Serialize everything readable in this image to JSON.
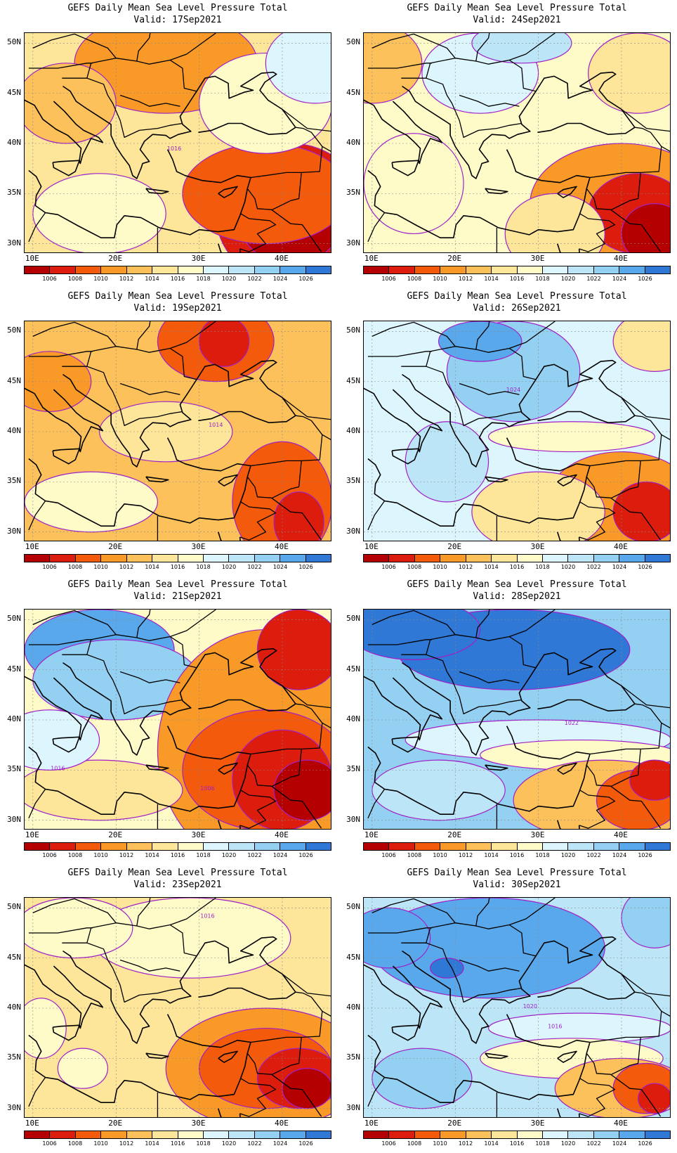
{
  "colorbar": {
    "levels": [
      "1006",
      "1008",
      "1010",
      "1012",
      "1014",
      "1016",
      "1018",
      "1020",
      "1022",
      "1024",
      "1026"
    ],
    "colors": [
      "#b40000",
      "#dc1c0c",
      "#f45a0c",
      "#f99a28",
      "#fdc15c",
      "#fde59a",
      "#fefbc8",
      "#ddf6fe",
      "#bce6f8",
      "#94d0f2",
      "#5aa8ec",
      "#2f78d6"
    ]
  },
  "lat_labels": [
    "50N",
    "45N",
    "40N",
    "35N",
    "30N"
  ],
  "lon_labels": [
    "10E",
    "20E",
    "30E",
    "40E"
  ],
  "panels": [
    {
      "title": "GEFS Daily Mean Sea Level Pressure Total",
      "valid": "Valid: 17Sep2021",
      "base": 5,
      "fields": [
        {
          "lon": 26,
          "lat": 50.5,
          "rx": 7,
          "ry": 3.5,
          "level": 1
        },
        {
          "lon": 26,
          "lat": 48,
          "rx": 11,
          "ry": 5,
          "level": 3
        },
        {
          "lon": 14,
          "lat": 44,
          "rx": 6,
          "ry": 4,
          "level": 4
        },
        {
          "lon": 41,
          "lat": 33,
          "rx": 9,
          "ry": 7,
          "level": 1
        },
        {
          "lon": 41,
          "lat": 32,
          "rx": 6,
          "ry": 4,
          "level": 0
        },
        {
          "lon": 38,
          "lat": 35,
          "rx": 10,
          "ry": 5,
          "level": 2
        },
        {
          "lon": 18,
          "lat": 33,
          "rx": 8,
          "ry": 4,
          "level": 6
        },
        {
          "lon": 38,
          "lat": 44,
          "rx": 8,
          "ry": 5,
          "level": 6
        },
        {
          "lon": 44,
          "lat": 48,
          "rx": 6,
          "ry": 4,
          "level": 7
        }
      ],
      "contour_labels": [
        {
          "text": "1016",
          "lon": 27,
          "lat": 39.3
        }
      ]
    },
    {
      "title": "GEFS Daily Mean Sea Level Pressure Total",
      "valid": "Valid: 24Sep2021",
      "base": 6,
      "fields": [
        {
          "lon": 15,
          "lat": 36,
          "rx": 6,
          "ry": 5,
          "level": 6
        },
        {
          "lon": 23,
          "lat": 47,
          "rx": 7,
          "ry": 4,
          "level": 7
        },
        {
          "lon": 40,
          "lat": 34,
          "rx": 11,
          "ry": 6,
          "level": 3
        },
        {
          "lon": 42,
          "lat": 33,
          "rx": 6,
          "ry": 4,
          "level": 1
        },
        {
          "lon": 44,
          "lat": 31,
          "rx": 4,
          "ry": 3,
          "level": 0
        },
        {
          "lon": 10,
          "lat": 48,
          "rx": 6,
          "ry": 4,
          "level": 4
        },
        {
          "lon": 32,
          "lat": 31,
          "rx": 6,
          "ry": 4,
          "level": 5
        },
        {
          "lon": 42,
          "lat": 47,
          "rx": 6,
          "ry": 4,
          "level": 5
        },
        {
          "lon": 28,
          "lat": 50,
          "rx": 6,
          "ry": 2,
          "level": 8
        }
      ],
      "contour_labels": []
    },
    {
      "title": "GEFS Daily Mean Sea Level Pressure Total",
      "valid": "Valid: 19Sep2021",
      "base": 4,
      "fields": [
        {
          "lon": 32,
          "lat": 49,
          "rx": 7,
          "ry": 4,
          "level": 2
        },
        {
          "lon": 33,
          "lat": 49,
          "rx": 3,
          "ry": 2.5,
          "level": 1
        },
        {
          "lon": 40,
          "lat": 33,
          "rx": 6,
          "ry": 6,
          "level": 2
        },
        {
          "lon": 42,
          "lat": 31,
          "rx": 3,
          "ry": 3,
          "level": 1
        },
        {
          "lon": 17,
          "lat": 33,
          "rx": 8,
          "ry": 3,
          "level": 6
        },
        {
          "lon": 12,
          "lat": 45,
          "rx": 5,
          "ry": 3,
          "level": 3
        },
        {
          "lon": 26,
          "lat": 40,
          "rx": 8,
          "ry": 3,
          "level": 5
        }
      ],
      "contour_labels": [
        {
          "text": "1014",
          "lon": 32,
          "lat": 40.5
        }
      ]
    },
    {
      "title": "GEFS Daily Mean Sea Level Pressure Total",
      "valid": "Valid: 26Sep2021",
      "base": 7,
      "fields": [
        {
          "lon": 27,
          "lat": 46,
          "rx": 8,
          "ry": 5,
          "level": 9
        },
        {
          "lon": 23,
          "lat": 49,
          "rx": 5,
          "ry": 2,
          "level": 10
        },
        {
          "lon": 19,
          "lat": 37,
          "rx": 5,
          "ry": 4,
          "level": 8
        },
        {
          "lon": 40,
          "lat": 33,
          "rx": 9,
          "ry": 5,
          "level": 3
        },
        {
          "lon": 43,
          "lat": 32,
          "rx": 4,
          "ry": 3,
          "level": 1
        },
        {
          "lon": 30,
          "lat": 32,
          "rx": 8,
          "ry": 4,
          "level": 5
        },
        {
          "lon": 44,
          "lat": 49,
          "rx": 5,
          "ry": 3,
          "level": 5
        },
        {
          "lon": 34,
          "lat": 39.5,
          "rx": 10,
          "ry": 1.5,
          "level": 6
        }
      ],
      "contour_labels": [
        {
          "text": "1024",
          "lon": 27,
          "lat": 44
        }
      ]
    },
    {
      "title": "GEFS Daily Mean Sea Level Pressure Total",
      "valid": "Valid: 21Sep2021",
      "base": 6,
      "fields": [
        {
          "lon": 18,
          "lat": 47,
          "rx": 9,
          "ry": 4,
          "level": 10
        },
        {
          "lon": 20,
          "lat": 44,
          "rx": 10,
          "ry": 4,
          "level": 9
        },
        {
          "lon": 38,
          "lat": 37,
          "rx": 13,
          "ry": 12,
          "level": 3
        },
        {
          "lon": 38,
          "lat": 35,
          "rx": 10,
          "ry": 6,
          "level": 2
        },
        {
          "lon": 40,
          "lat": 34,
          "rx": 6,
          "ry": 5,
          "level": 1
        },
        {
          "lon": 42,
          "lat": 47,
          "rx": 5,
          "ry": 4,
          "level": 1
        },
        {
          "lon": 43,
          "lat": 33,
          "rx": 4,
          "ry": 3,
          "level": 0
        },
        {
          "lon": 18,
          "lat": 33,
          "rx": 10,
          "ry": 3,
          "level": 5
        },
        {
          "lon": 12,
          "lat": 38,
          "rx": 6,
          "ry": 3,
          "level": 7
        }
      ],
      "contour_labels": [
        {
          "text": "1016",
          "lon": 13,
          "lat": 35
        },
        {
          "text": "1006",
          "lon": 31,
          "lat": 33
        }
      ]
    },
    {
      "title": "GEFS Daily Mean Sea Level Pressure Total",
      "valid": "Valid: 28Sep2021",
      "base": 9,
      "fields": [
        {
          "lon": 27,
          "lat": 47,
          "rx": 14,
          "ry": 4,
          "level": 11
        },
        {
          "lon": 15,
          "lat": 49,
          "rx": 8,
          "ry": 3,
          "level": 11
        },
        {
          "lon": 30,
          "lat": 38,
          "rx": 16,
          "ry": 2,
          "level": 7
        },
        {
          "lon": 35,
          "lat": 36.5,
          "rx": 12,
          "ry": 1.5,
          "level": 6
        },
        {
          "lon": 38,
          "lat": 32,
          "rx": 11,
          "ry": 4,
          "level": 4
        },
        {
          "lon": 42,
          "lat": 32,
          "rx": 5,
          "ry": 3,
          "level": 2
        },
        {
          "lon": 44,
          "lat": 34,
          "rx": 3,
          "ry": 2,
          "level": 1
        },
        {
          "lon": 18,
          "lat": 33,
          "rx": 8,
          "ry": 3,
          "level": 8
        }
      ],
      "contour_labels": [
        {
          "text": "1022",
          "lon": 34,
          "lat": 39.5
        }
      ]
    },
    {
      "title": "GEFS Daily Mean Sea Level Pressure Total",
      "valid": "Valid: 23Sep2021",
      "base": 5,
      "fields": [
        {
          "lon": 29,
          "lat": 47,
          "rx": 12,
          "ry": 4,
          "level": 6
        },
        {
          "lon": 15,
          "lat": 48,
          "rx": 7,
          "ry": 3,
          "level": 6
        },
        {
          "lon": 11,
          "lat": 38,
          "rx": 3,
          "ry": 3,
          "level": 6
        },
        {
          "lon": 16,
          "lat": 34,
          "rx": 3,
          "ry": 2,
          "level": 6
        },
        {
          "lon": 38,
          "lat": 34,
          "rx": 12,
          "ry": 6,
          "level": 3
        },
        {
          "lon": 38,
          "lat": 34,
          "rx": 8,
          "ry": 4,
          "level": 2
        },
        {
          "lon": 42,
          "lat": 33,
          "rx": 5,
          "ry": 3,
          "level": 1
        },
        {
          "lon": 43,
          "lat": 32,
          "rx": 3,
          "ry": 2,
          "level": 0
        }
      ],
      "contour_labels": [
        {
          "text": "1016",
          "lon": 31,
          "lat": 49
        }
      ]
    },
    {
      "title": "GEFS Daily Mean Sea Level Pressure Total",
      "valid": "Valid: 30Sep2021",
      "base": 8,
      "fields": [
        {
          "lon": 24,
          "lat": 46,
          "rx": 14,
          "ry": 5,
          "level": 10
        },
        {
          "lon": 19,
          "lat": 44,
          "rx": 2,
          "ry": 1,
          "level": 11
        },
        {
          "lon": 12,
          "lat": 47,
          "rx": 5,
          "ry": 3,
          "level": 10
        },
        {
          "lon": 35,
          "lat": 38,
          "rx": 11,
          "ry": 1.5,
          "level": 7
        },
        {
          "lon": 34,
          "lat": 35,
          "rx": 11,
          "ry": 2,
          "level": 6
        },
        {
          "lon": 40,
          "lat": 32,
          "rx": 8,
          "ry": 3,
          "level": 4
        },
        {
          "lon": 43,
          "lat": 32,
          "rx": 4,
          "ry": 2.5,
          "level": 2
        },
        {
          "lon": 44,
          "lat": 31,
          "rx": 2,
          "ry": 1.5,
          "level": 1
        },
        {
          "lon": 44,
          "lat": 49,
          "rx": 4,
          "ry": 3,
          "level": 9
        },
        {
          "lon": 16,
          "lat": 33,
          "rx": 6,
          "ry": 3,
          "level": 9
        }
      ],
      "contour_labels": [
        {
          "text": "1020",
          "lon": 29,
          "lat": 40
        },
        {
          "text": "1016",
          "lon": 32,
          "lat": 38
        }
      ]
    }
  ]
}
